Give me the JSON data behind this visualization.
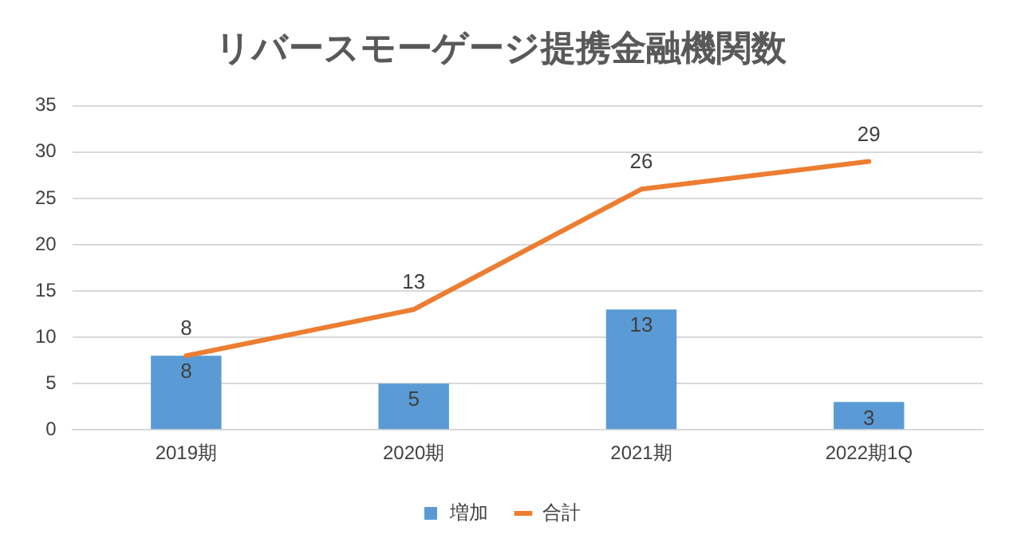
{
  "chart_data": {
    "type": "bar",
    "title": "リバースモーゲージ提携金融機関数",
    "categories": [
      "2019期",
      "2020期",
      "2021期",
      "2022期1Q"
    ],
    "series": [
      {
        "name": "増加",
        "color": "#5b9bd5",
        "values": [
          8,
          5,
          13,
          3
        ]
      },
      {
        "name": "合計",
        "type": "line",
        "color": "#ed7d31",
        "values": [
          8,
          13,
          26,
          29
        ]
      }
    ],
    "ylim": [
      0,
      35
    ],
    "yticks": [
      0,
      5,
      10,
      15,
      20,
      25,
      30,
      35
    ],
    "grid": "y",
    "legend": "bottom",
    "data_labels": true,
    "marker": "none",
    "line_style": "solid"
  }
}
